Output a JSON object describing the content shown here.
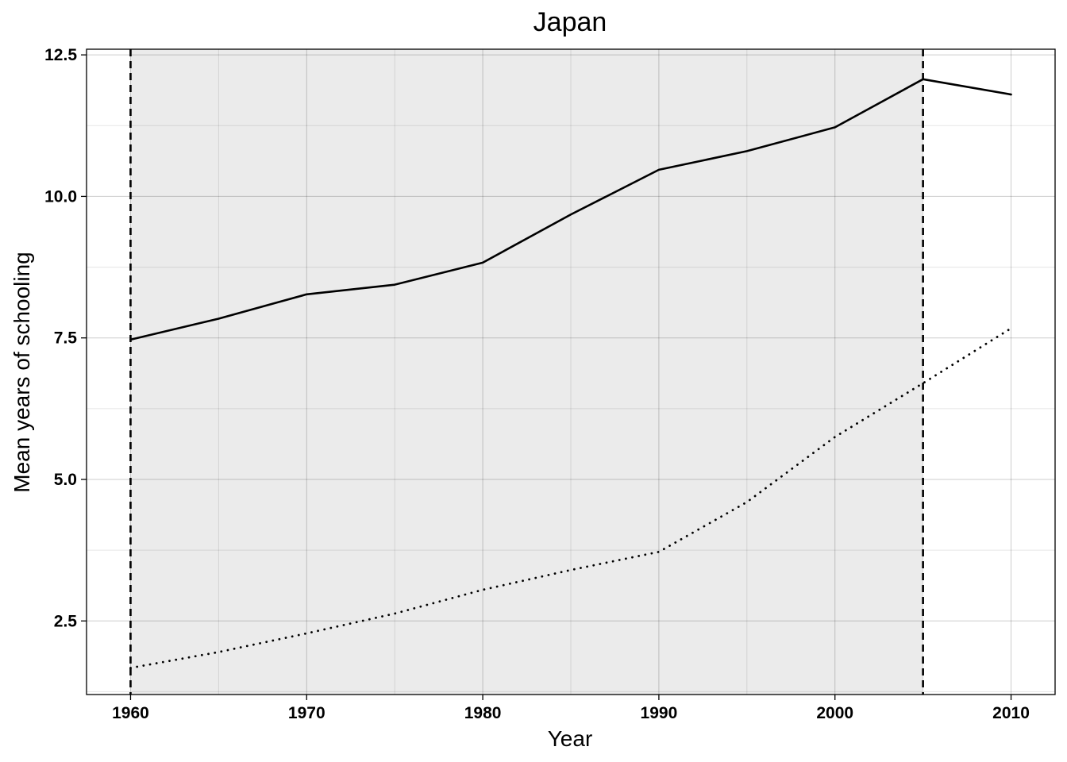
{
  "chart_data": {
    "type": "line",
    "title": "Japan",
    "xlabel": "Year",
    "ylabel": "Mean years of schooling",
    "xlim": [
      1957.5,
      2012.5
    ],
    "ylim": [
      1.2,
      12.6
    ],
    "x_ticks": [
      1960,
      1970,
      1980,
      1990,
      2000,
      2010
    ],
    "x_tick_labels": [
      "1960",
      "1970",
      "1980",
      "1990",
      "2000",
      "2010"
    ],
    "y_ticks": [
      2.5,
      5.0,
      7.5,
      10.0,
      12.5
    ],
    "y_tick_labels": [
      "2.5",
      "5.0",
      "7.5",
      "10.0",
      "12.5"
    ],
    "x_minor_ticks": [
      1965,
      1975,
      1985,
      1995,
      2005
    ],
    "y_minor_ticks": [
      1.25,
      3.75,
      6.25,
      8.75,
      11.25
    ],
    "grid": true,
    "legend": "none",
    "shaded_region": {
      "x_start": 1960,
      "x_end": 2005,
      "color": "#ebebeb"
    },
    "reference_lines": [
      {
        "x": 1960,
        "style": "dashed"
      },
      {
        "x": 2005,
        "style": "dashed"
      }
    ],
    "x": [
      1960,
      1965,
      1970,
      1975,
      1980,
      1985,
      1990,
      1995,
      2000,
      2005,
      2010
    ],
    "series": [
      {
        "style": "solid",
        "values": [
          7.47,
          7.84,
          8.27,
          8.44,
          8.83,
          9.68,
          10.47,
          10.8,
          11.22,
          12.07,
          11.8
        ]
      },
      {
        "style": "dotted",
        "values": [
          1.67,
          1.95,
          2.28,
          2.63,
          3.05,
          3.4,
          3.72,
          4.6,
          5.75,
          6.7,
          7.67
        ]
      }
    ]
  }
}
